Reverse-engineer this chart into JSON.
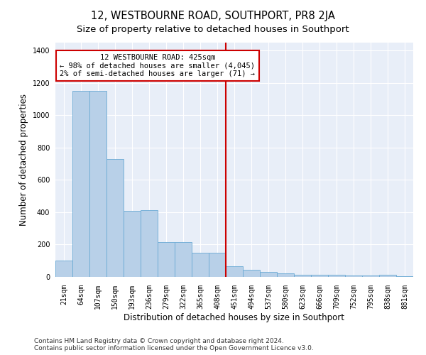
{
  "title": "12, WESTBOURNE ROAD, SOUTHPORT, PR8 2JA",
  "subtitle": "Size of property relative to detached houses in Southport",
  "xlabel": "Distribution of detached houses by size in Southport",
  "ylabel": "Number of detached properties",
  "categories": [
    "21sqm",
    "64sqm",
    "107sqm",
    "150sqm",
    "193sqm",
    "236sqm",
    "279sqm",
    "322sqm",
    "365sqm",
    "408sqm",
    "451sqm",
    "494sqm",
    "537sqm",
    "580sqm",
    "623sqm",
    "666sqm",
    "709sqm",
    "752sqm",
    "795sqm",
    "838sqm",
    "881sqm"
  ],
  "values": [
    100,
    1150,
    1150,
    730,
    410,
    415,
    215,
    215,
    150,
    150,
    65,
    45,
    30,
    20,
    15,
    12,
    12,
    10,
    10,
    12,
    5
  ],
  "bar_color": "#b8d0e8",
  "bar_edge_color": "#6aaad4",
  "vline_color": "#cc0000",
  "vline_x": 9.5,
  "annotation_text": "12 WESTBOURNE ROAD: 425sqm\n← 98% of detached houses are smaller (4,045)\n2% of semi-detached houses are larger (71) →",
  "annotation_box_color": "#cc0000",
  "ylim": [
    0,
    1450
  ],
  "yticks": [
    0,
    200,
    400,
    600,
    800,
    1000,
    1200,
    1400
  ],
  "bg_color": "#e8eef8",
  "footer_line1": "Contains HM Land Registry data © Crown copyright and database right 2024.",
  "footer_line2": "Contains public sector information licensed under the Open Government Licence v3.0.",
  "title_fontsize": 10.5,
  "subtitle_fontsize": 9.5,
  "tick_fontsize": 7,
  "label_fontsize": 8.5,
  "footer_fontsize": 6.5,
  "annotation_fontsize": 7.5
}
